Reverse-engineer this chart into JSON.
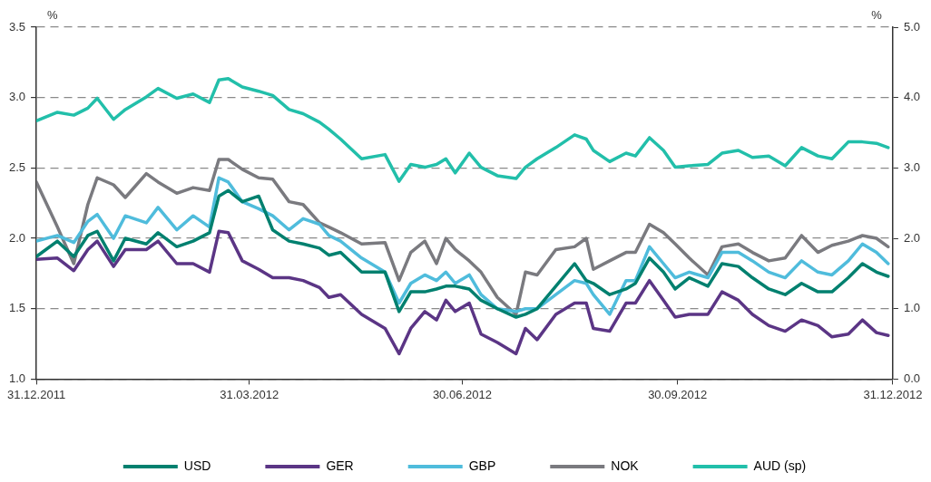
{
  "chart_data": {
    "type": "line",
    "ylabel": "%",
    "y2label": "%",
    "x": [
      "2011-12-31",
      "2012-01-09",
      "2012-01-16",
      "2012-01-22",
      "2012-01-26",
      "2012-02-02",
      "2012-02-07",
      "2012-02-16",
      "2012-02-21",
      "2012-02-29",
      "2012-03-07",
      "2012-03-14",
      "2012-03-18",
      "2012-03-22",
      "2012-03-28",
      "2012-04-04",
      "2012-04-10",
      "2012-04-17",
      "2012-04-23",
      "2012-04-30",
      "2012-05-04",
      "2012-05-09",
      "2012-05-18",
      "2012-05-28",
      "2012-06-03",
      "2012-06-08",
      "2012-06-14",
      "2012-06-19",
      "2012-06-23",
      "2012-06-27",
      "2012-07-03",
      "2012-07-08",
      "2012-07-15",
      "2012-07-23",
      "2012-07-27",
      "2012-08-01",
      "2012-08-09",
      "2012-08-17",
      "2012-08-22",
      "2012-08-25",
      "2012-09-01",
      "2012-09-08",
      "2012-09-12",
      "2012-09-18",
      "2012-09-24",
      "2012-09-29",
      "2012-10-05",
      "2012-10-13",
      "2012-10-19",
      "2012-10-26",
      "2012-11-01",
      "2012-11-08",
      "2012-11-15",
      "2012-11-22",
      "2012-11-29",
      "2012-12-05",
      "2012-12-12",
      "2012-12-18",
      "2012-12-24",
      "2012-12-29"
    ],
    "series": [
      {
        "name": "USD",
        "color": "#00806f",
        "values": [
          1.87,
          1.98,
          1.87,
          2.02,
          2.05,
          1.84,
          2.0,
          1.96,
          2.04,
          1.94,
          1.98,
          2.04,
          2.3,
          2.34,
          2.26,
          2.3,
          2.06,
          1.98,
          1.96,
          1.93,
          1.88,
          1.9,
          1.76,
          1.76,
          1.48,
          1.62,
          1.62,
          1.64,
          1.66,
          1.66,
          1.64,
          1.56,
          1.5,
          1.44,
          1.46,
          1.5,
          1.66,
          1.82,
          1.7,
          1.68,
          1.6,
          1.64,
          1.68,
          1.86,
          1.76,
          1.64,
          1.72,
          1.66,
          1.82,
          1.8,
          1.72,
          1.64,
          1.6,
          1.68,
          1.62,
          1.62,
          1.72,
          1.82,
          1.76,
          1.73
        ]
      },
      {
        "name": "GER",
        "color": "#5b3585",
        "values": [
          1.85,
          1.86,
          1.77,
          1.92,
          1.98,
          1.8,
          1.92,
          1.92,
          1.98,
          1.82,
          1.82,
          1.76,
          2.05,
          2.04,
          1.84,
          1.78,
          1.72,
          1.72,
          1.7,
          1.65,
          1.58,
          1.6,
          1.46,
          1.36,
          1.18,
          1.36,
          1.48,
          1.42,
          1.56,
          1.48,
          1.54,
          1.32,
          1.26,
          1.18,
          1.36,
          1.28,
          1.46,
          1.54,
          1.54,
          1.36,
          1.34,
          1.54,
          1.54,
          1.7,
          1.56,
          1.44,
          1.46,
          1.46,
          1.62,
          1.56,
          1.46,
          1.38,
          1.34,
          1.42,
          1.38,
          1.3,
          1.32,
          1.42,
          1.33,
          1.31
        ]
      },
      {
        "name": "GBP",
        "color": "#4fbcdc",
        "values": [
          1.98,
          2.02,
          1.97,
          2.12,
          2.17,
          2.0,
          2.16,
          2.11,
          2.22,
          2.06,
          2.16,
          2.08,
          2.43,
          2.4,
          2.26,
          2.21,
          2.16,
          2.06,
          2.14,
          2.1,
          2.02,
          1.98,
          1.86,
          1.76,
          1.54,
          1.68,
          1.74,
          1.7,
          1.76,
          1.68,
          1.74,
          1.6,
          1.5,
          1.48,
          1.5,
          1.5,
          1.6,
          1.7,
          1.68,
          1.6,
          1.46,
          1.7,
          1.7,
          1.94,
          1.82,
          1.72,
          1.76,
          1.72,
          1.9,
          1.9,
          1.84,
          1.76,
          1.72,
          1.84,
          1.76,
          1.74,
          1.84,
          1.96,
          1.9,
          1.82
        ]
      },
      {
        "name": "NOK",
        "color": "#7a7a7f",
        "values": [
          2.4,
          2.08,
          1.82,
          2.24,
          2.43,
          2.38,
          2.29,
          2.46,
          2.4,
          2.32,
          2.36,
          2.34,
          2.56,
          2.56,
          2.49,
          2.43,
          2.42,
          2.26,
          2.24,
          2.11,
          2.08,
          2.04,
          1.96,
          1.97,
          1.7,
          1.9,
          1.98,
          1.82,
          2.0,
          1.92,
          1.84,
          1.76,
          1.58,
          1.46,
          1.76,
          1.74,
          1.92,
          1.94,
          2.0,
          1.78,
          1.84,
          1.9,
          1.9,
          2.1,
          2.04,
          1.96,
          1.86,
          1.74,
          1.94,
          1.96,
          1.9,
          1.84,
          1.86,
          2.02,
          1.9,
          1.95,
          1.98,
          2.02,
          2.0,
          1.94
        ]
      },
      {
        "name": "AUD (sp)",
        "color": "#22bfaa",
        "axis": "y2",
        "values": [
          3.67,
          3.79,
          3.75,
          3.85,
          3.99,
          3.69,
          3.83,
          4.01,
          4.13,
          3.99,
          4.05,
          3.93,
          4.25,
          4.27,
          4.15,
          4.09,
          4.03,
          3.83,
          3.77,
          3.65,
          3.55,
          3.41,
          3.13,
          3.19,
          2.81,
          3.05,
          3.01,
          3.05,
          3.13,
          2.93,
          3.21,
          3.01,
          2.89,
          2.85,
          3.01,
          3.13,
          3.29,
          3.47,
          3.41,
          3.25,
          3.09,
          3.21,
          3.17,
          3.43,
          3.25,
          3.01,
          3.03,
          3.05,
          3.21,
          3.25,
          3.15,
          3.17,
          3.03,
          3.29,
          3.17,
          3.13,
          3.37,
          3.37,
          3.35,
          3.29
        ]
      }
    ],
    "xlim": [
      "2011-12-31",
      "2012-12-31"
    ],
    "xticks": [
      {
        "value": "2011-12-31",
        "label": "31.12.2011"
      },
      {
        "value": "2012-03-31",
        "label": "31.03.2012"
      },
      {
        "value": "2012-06-30",
        "label": "30.06.2012"
      },
      {
        "value": "2012-09-30",
        "label": "30.09.2012"
      },
      {
        "value": "2012-12-31",
        "label": "31.12.2012"
      }
    ],
    "ylim": [
      1,
      3.5
    ],
    "yticks": [
      {
        "value": 1,
        "label": "1.0"
      },
      {
        "value": 1.5,
        "label": "1.5"
      },
      {
        "value": 2,
        "label": "2.0"
      },
      {
        "value": 2.5,
        "label": "2.5"
      },
      {
        "value": 3,
        "label": "3.0"
      },
      {
        "value": 3.5,
        "label": "3.5"
      }
    ],
    "y2lim": [
      0,
      5
    ],
    "y2ticks": [
      {
        "value": 0,
        "label": "0.0"
      },
      {
        "value": 1,
        "label": "1.0"
      },
      {
        "value": 2,
        "label": "2.0"
      },
      {
        "value": 3,
        "label": "3.0"
      },
      {
        "value": 4,
        "label": "4.0"
      },
      {
        "value": 5,
        "label": "5.0"
      }
    ],
    "grid": "y",
    "legend": "bottom",
    "marker": "none",
    "line_style": "solid"
  }
}
